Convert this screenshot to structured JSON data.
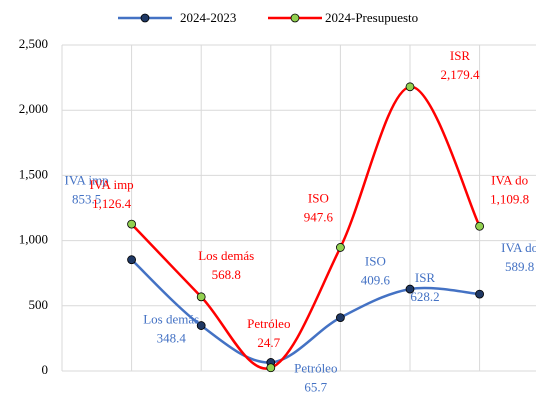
{
  "chart_data": {
    "type": "line",
    "categories": [
      "IVA imp",
      "Los demás",
      "Petróleo",
      "ISO",
      "ISR",
      "IVA do"
    ],
    "series": [
      {
        "name": "2024-2023",
        "color": "#4472c4",
        "values": [
          853.5,
          348.4,
          65.7,
          409.6,
          628.2,
          589.8
        ]
      },
      {
        "name": "2024-Presupuesto",
        "color": "#ff0000",
        "values": [
          1126.4,
          568.8,
          24.7,
          947.6,
          2179.4,
          1109.8
        ],
        "value_labels": [
          "1,126.4",
          "568.8",
          "24.7",
          "947.6",
          "2,179.4",
          "1,109.8"
        ]
      }
    ],
    "ylim": [
      0,
      2500
    ],
    "yticks": [
      0,
      500,
      {
        "value": 1000,
        "label": "1,000"
      },
      {
        "value": 1500,
        "label": "1,500"
      },
      {
        "value": 2000,
        "label": "2,000"
      },
      {
        "value": 2500,
        "label": "2,500"
      }
    ],
    "grid": true,
    "legend": "top"
  }
}
